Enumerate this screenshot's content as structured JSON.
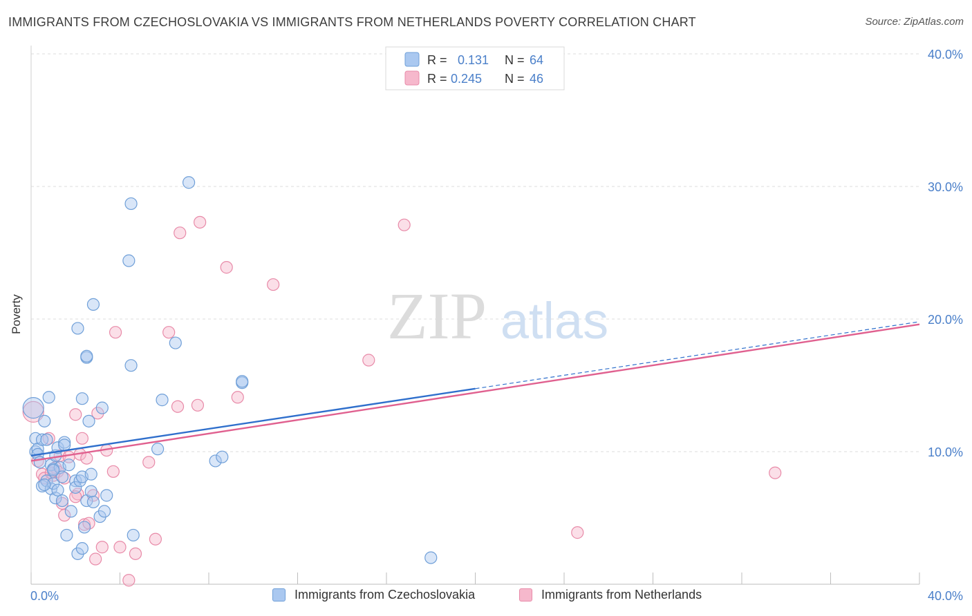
{
  "header": {
    "title": "IMMIGRANTS FROM CZECHOSLOVAKIA VS IMMIGRANTS FROM NETHERLANDS POVERTY CORRELATION CHART",
    "source": "Source: ZipAtlas.com"
  },
  "colors": {
    "blue_fill": "#aac8f0",
    "blue_stroke": "#6f9fd8",
    "blue_line": "#2f6fcc",
    "pink_fill": "#f6b8cc",
    "pink_stroke": "#e88aa8",
    "pink_line": "#e0608f",
    "tick_label": "#4a7fc9"
  },
  "watermark": {
    "part1": "ZIP",
    "part2": "atlas"
  },
  "legend": {
    "rows": [
      {
        "r_label": "R =",
        "r_value": "0.131",
        "n_label": "N =",
        "n_value": "64"
      },
      {
        "r_label": "R =",
        "r_value": "0.245",
        "n_label": "N =",
        "n_value": "46"
      }
    ]
  },
  "chart_data": {
    "type": "scatter",
    "title": "IMMIGRANTS FROM CZECHOSLOVAKIA VS IMMIGRANTS FROM NETHERLANDS POVERTY CORRELATION CHART",
    "xlabel": "",
    "ylabel": "Poverty",
    "xlim": [
      0,
      40
    ],
    "ylim": [
      0,
      40
    ],
    "x_tick_labels": [
      "0.0%",
      "40.0%"
    ],
    "y_ticks": [
      10,
      20,
      30,
      40
    ],
    "y_tick_labels": [
      "10.0%",
      "20.0%",
      "30.0%",
      "40.0%"
    ],
    "grid": true,
    "legend_position": "top-center",
    "series": [
      {
        "name": "Immigrants from Czechoslovakia",
        "color": "blue",
        "R": 0.131,
        "N": 64,
        "trend": {
          "x": [
            0,
            20,
            40
          ],
          "y": [
            9.7,
            14.7,
            19.8
          ],
          "solid_until_x": 20
        },
        "points": [
          [
            0.1,
            13.3
          ],
          [
            0.2,
            11.0
          ],
          [
            0.2,
            10.0
          ],
          [
            0.3,
            10.2
          ],
          [
            0.3,
            9.8
          ],
          [
            0.4,
            9.2
          ],
          [
            0.5,
            7.4
          ],
          [
            0.5,
            10.9
          ],
          [
            0.6,
            12.3
          ],
          [
            0.7,
            7.8
          ],
          [
            0.7,
            10.9
          ],
          [
            0.8,
            14.1
          ],
          [
            0.9,
            9.0
          ],
          [
            0.9,
            7.2
          ],
          [
            1.0,
            8.7
          ],
          [
            1.0,
            7.6
          ],
          [
            1.1,
            9.7
          ],
          [
            1.1,
            6.5
          ],
          [
            1.2,
            7.1
          ],
          [
            1.2,
            10.3
          ],
          [
            1.3,
            8.8
          ],
          [
            1.4,
            6.3
          ],
          [
            1.4,
            8.1
          ],
          [
            1.5,
            10.7
          ],
          [
            1.5,
            10.5
          ],
          [
            1.6,
            3.7
          ],
          [
            1.7,
            9.0
          ],
          [
            1.8,
            5.5
          ],
          [
            2.0,
            7.8
          ],
          [
            2.0,
            7.3
          ],
          [
            2.1,
            19.3
          ],
          [
            2.1,
            2.3
          ],
          [
            2.2,
            7.8
          ],
          [
            2.3,
            14.0
          ],
          [
            2.3,
            8.1
          ],
          [
            2.3,
            2.7
          ],
          [
            2.4,
            4.3
          ],
          [
            2.5,
            6.3
          ],
          [
            2.5,
            17.1
          ],
          [
            2.5,
            17.2
          ],
          [
            2.6,
            12.3
          ],
          [
            2.7,
            7.0
          ],
          [
            2.7,
            8.3
          ],
          [
            2.8,
            21.1
          ],
          [
            2.8,
            6.2
          ],
          [
            3.1,
            5.1
          ],
          [
            3.2,
            13.3
          ],
          [
            3.3,
            5.5
          ],
          [
            3.4,
            6.7
          ],
          [
            4.4,
            24.4
          ],
          [
            4.5,
            16.5
          ],
          [
            4.5,
            28.7
          ],
          [
            4.6,
            3.7
          ],
          [
            5.7,
            10.2
          ],
          [
            5.9,
            13.9
          ],
          [
            6.5,
            18.2
          ],
          [
            7.1,
            30.3
          ],
          [
            8.3,
            9.3
          ],
          [
            8.6,
            9.6
          ],
          [
            9.5,
            15.2
          ],
          [
            9.5,
            15.3
          ],
          [
            18.0,
            2.0
          ],
          [
            1.0,
            8.6
          ],
          [
            0.6,
            7.5
          ]
        ]
      },
      {
        "name": "Immigrants from Netherlands",
        "color": "pink",
        "R": 0.245,
        "N": 46,
        "trend": {
          "x": [
            0,
            40
          ],
          "y": [
            9.3,
            19.6
          ]
        },
        "points": [
          [
            0.1,
            13.0
          ],
          [
            0.3,
            9.3
          ],
          [
            0.5,
            8.3
          ],
          [
            0.6,
            8.0
          ],
          [
            0.8,
            11.0
          ],
          [
            1.0,
            8.2
          ],
          [
            1.1,
            8.8
          ],
          [
            1.2,
            8.5
          ],
          [
            1.3,
            9.7
          ],
          [
            1.4,
            6.1
          ],
          [
            1.5,
            5.2
          ],
          [
            1.5,
            8.0
          ],
          [
            1.7,
            9.6
          ],
          [
            2.0,
            12.8
          ],
          [
            2.1,
            6.8
          ],
          [
            2.2,
            9.8
          ],
          [
            2.3,
            11.0
          ],
          [
            2.4,
            4.5
          ],
          [
            2.5,
            9.5
          ],
          [
            2.6,
            4.6
          ],
          [
            2.8,
            6.7
          ],
          [
            2.9,
            1.9
          ],
          [
            3.0,
            12.9
          ],
          [
            3.2,
            2.8
          ],
          [
            3.4,
            10.1
          ],
          [
            3.7,
            8.5
          ],
          [
            3.8,
            19.0
          ],
          [
            4.0,
            2.8
          ],
          [
            4.4,
            0.3
          ],
          [
            4.7,
            2.3
          ],
          [
            5.3,
            9.2
          ],
          [
            5.6,
            3.4
          ],
          [
            6.2,
            19.0
          ],
          [
            6.6,
            13.4
          ],
          [
            6.7,
            26.5
          ],
          [
            7.5,
            13.5
          ],
          [
            7.6,
            27.3
          ],
          [
            8.8,
            23.9
          ],
          [
            9.3,
            14.1
          ],
          [
            10.9,
            22.6
          ],
          [
            15.2,
            16.9
          ],
          [
            16.8,
            27.1
          ],
          [
            24.6,
            3.9
          ],
          [
            33.5,
            8.4
          ],
          [
            2.0,
            6.6
          ],
          [
            0.9,
            8.4
          ]
        ]
      }
    ]
  },
  "legend_bottom": {
    "items": [
      "Immigrants from Czechoslovakia",
      "Immigrants from Netherlands"
    ]
  }
}
